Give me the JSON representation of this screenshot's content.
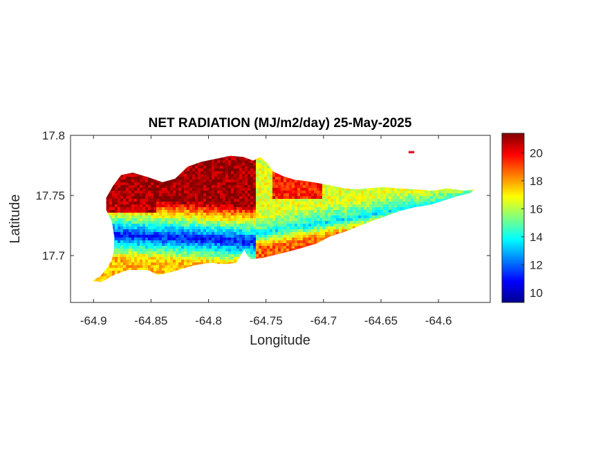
{
  "chart_data": {
    "type": "heatmap",
    "title": "NET RADIATION (MJ/m2/day) 25-May-2025",
    "xlabel": "Longitude",
    "ylabel": "Latitude",
    "xlim": [
      -64.92,
      -64.555
    ],
    "ylim": [
      17.661,
      17.8
    ],
    "x_ticks": [
      -64.9,
      -64.85,
      -64.8,
      -64.75,
      -64.7,
      -64.65,
      -64.6
    ],
    "x_tick_labels": [
      "-64.9",
      "-64.85",
      "-64.8",
      "-64.75",
      "-64.7",
      "-64.65",
      "-64.6"
    ],
    "y_ticks": [
      17.7,
      17.75,
      17.8
    ],
    "y_tick_labels": [
      "17.7",
      "17.75",
      "17.8"
    ],
    "colormap": "jet",
    "color_range": [
      9.3,
      21.4
    ],
    "colorbar_ticks": [
      10,
      12,
      14,
      16,
      18,
      20
    ],
    "colorbar_tick_labels": [
      "10",
      "12",
      "14",
      "16",
      "18",
      "20"
    ],
    "grid": false,
    "island_outline": [
      [
        -64.901,
        17.679
      ],
      [
        -64.894,
        17.683
      ],
      [
        -64.888,
        17.69
      ],
      [
        -64.884,
        17.697
      ],
      [
        -64.882,
        17.706
      ],
      [
        -64.882,
        17.716
      ],
      [
        -64.884,
        17.728
      ],
      [
        -64.889,
        17.738
      ],
      [
        -64.889,
        17.748
      ],
      [
        -64.883,
        17.758
      ],
      [
        -64.876,
        17.767
      ],
      [
        -64.866,
        17.769
      ],
      [
        -64.852,
        17.765
      ],
      [
        -64.84,
        17.761
      ],
      [
        -64.829,
        17.764
      ],
      [
        -64.818,
        17.774
      ],
      [
        -64.806,
        17.778
      ],
      [
        -64.791,
        17.781
      ],
      [
        -64.781,
        17.783
      ],
      [
        -64.77,
        17.782
      ],
      [
        -64.761,
        17.779
      ],
      [
        -64.755,
        17.782
      ],
      [
        -64.748,
        17.776
      ],
      [
        -64.744,
        17.77
      ],
      [
        -64.735,
        17.766
      ],
      [
        -64.725,
        17.763
      ],
      [
        -64.715,
        17.762
      ],
      [
        -64.703,
        17.76
      ],
      [
        -64.692,
        17.758
      ],
      [
        -64.682,
        17.756
      ],
      [
        -64.672,
        17.755
      ],
      [
        -64.66,
        17.756
      ],
      [
        -64.648,
        17.757
      ],
      [
        -64.636,
        17.756
      ],
      [
        -64.62,
        17.755
      ],
      [
        -64.605,
        17.754
      ],
      [
        -64.592,
        17.756
      ],
      [
        -64.578,
        17.754
      ],
      [
        -64.569,
        17.755
      ],
      [
        -64.572,
        17.752
      ],
      [
        -64.585,
        17.749
      ],
      [
        -64.598,
        17.745
      ],
      [
        -64.608,
        17.742
      ],
      [
        -64.622,
        17.74
      ],
      [
        -64.634,
        17.737
      ],
      [
        -64.645,
        17.733
      ],
      [
        -64.657,
        17.729
      ],
      [
        -64.668,
        17.725
      ],
      [
        -64.681,
        17.72
      ],
      [
        -64.694,
        17.716
      ],
      [
        -64.706,
        17.71
      ],
      [
        -64.72,
        17.706
      ],
      [
        -64.736,
        17.702
      ],
      [
        -64.753,
        17.698
      ],
      [
        -64.763,
        17.697
      ],
      [
        -64.766,
        17.7
      ],
      [
        -64.769,
        17.705
      ],
      [
        -64.772,
        17.7
      ],
      [
        -64.776,
        17.694
      ],
      [
        -64.784,
        17.693
      ],
      [
        -64.789,
        17.693
      ],
      [
        -64.798,
        17.694
      ],
      [
        -64.812,
        17.692
      ],
      [
        -64.826,
        17.688
      ],
      [
        -64.838,
        17.685
      ],
      [
        -64.844,
        17.684
      ],
      [
        -64.853,
        17.688
      ],
      [
        -64.87,
        17.688
      ],
      [
        -64.882,
        17.684
      ],
      [
        -64.893,
        17.678
      ],
      [
        -64.901,
        17.679
      ]
    ],
    "cay_outline": [
      [
        -64.626,
        17.787
      ],
      [
        -64.621,
        17.787
      ],
      [
        -64.621,
        17.785
      ],
      [
        -64.626,
        17.785
      ]
    ],
    "value_pattern": {
      "north_coast_max": 21.4,
      "central_valley_min": 9.8,
      "east_band_mean": 14.5,
      "south_coast_max": 19.5
    }
  }
}
